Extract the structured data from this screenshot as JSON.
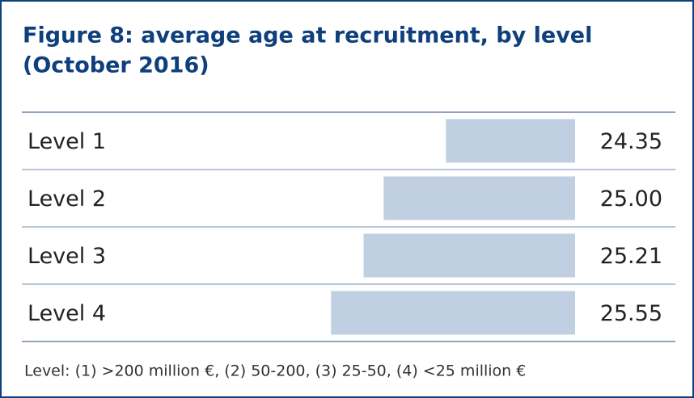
{
  "chart_data": {
    "type": "bar",
    "orientation": "horizontal",
    "bars_anchor": "right",
    "title": "Figure 8: average age at recruitment, by level",
    "subtitle": "(October 2016)",
    "categories": [
      "Level 1",
      "Level 2",
      "Level 3",
      "Level 4"
    ],
    "values": [
      24.35,
      25.0,
      25.21,
      25.55
    ],
    "value_labels": [
      "24.35",
      "25.00",
      "25.21",
      "25.55"
    ],
    "color": "#c0cfe2",
    "xlim": [
      23,
      26
    ],
    "note": "Level: (1) >200 million €, (2) 50-200, (3) 25-50, (4) <25 million €"
  }
}
